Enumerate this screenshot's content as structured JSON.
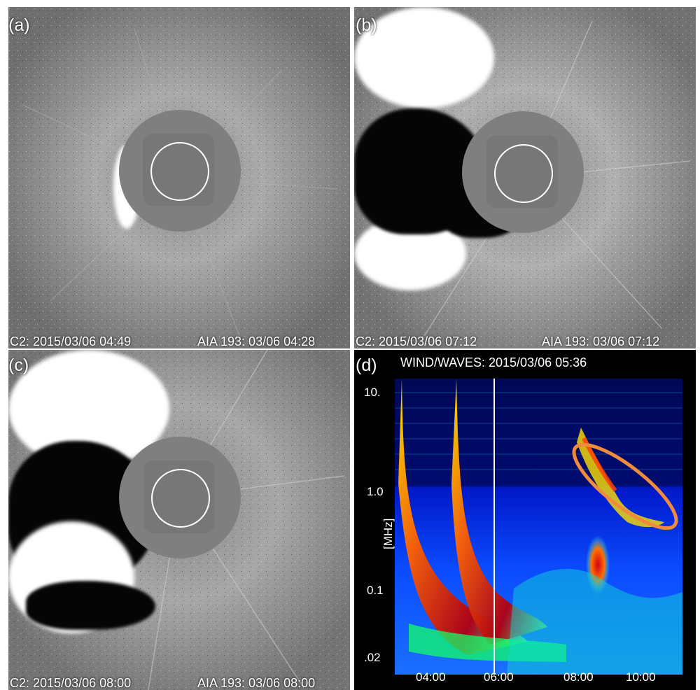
{
  "panels": [
    {
      "id": "a",
      "letter": "(a)",
      "left_caption": "C2: 2015/03/06 04:49",
      "right_caption": "AIA 193: 03/06 04:28"
    },
    {
      "id": "b",
      "letter": "(b)",
      "left_caption": "C2: 2015/03/06 07:12",
      "right_caption": "AIA 193: 03/06 07:12"
    },
    {
      "id": "c",
      "letter": "(c)",
      "left_caption": "C2: 2015/03/06 08:00",
      "right_caption": "AIA 193: 03/06 08:00"
    }
  ],
  "spectrogram": {
    "letter": "(d)",
    "title": "WIND/WAVES: 2015/03/06 05:36",
    "ylabel": "[MHz]",
    "y_ticks": [
      "10.",
      "1.0",
      "0.1",
      ".02"
    ],
    "x_ticks": [
      "04:00",
      "06:00",
      "08:00",
      "10:00"
    ],
    "highlight_color": "#f08a3c",
    "colors": {
      "background": "#000000",
      "plot_low": "#000a7d",
      "plot_mid": "#0b47ff",
      "plot_high": "#d8001b"
    }
  }
}
